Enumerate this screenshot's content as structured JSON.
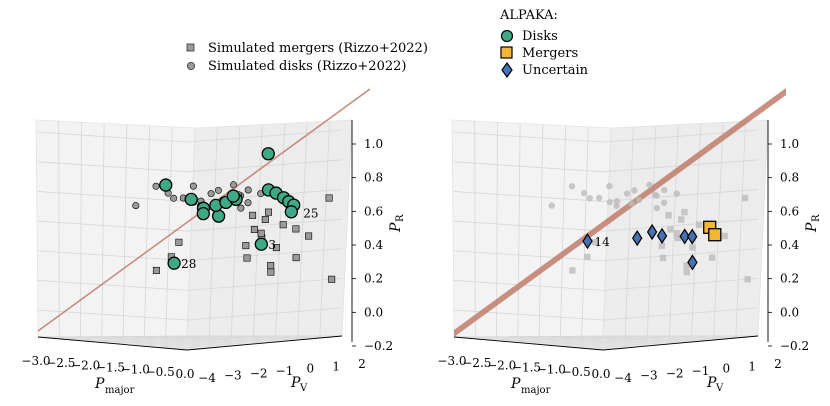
{
  "legend_sim": {
    "mergers_label": "Simulated mergers (Rizzo+2022)",
    "disks_label": "Simulated disks (Rizzo+2022)"
  },
  "legend_alpaka": {
    "title": "ALPAKA:",
    "disks_label": "Disks",
    "mergers_label": "Mergers",
    "uncertain_label": "Uncertain"
  },
  "colors": {
    "disk": "#3fa886",
    "merger": "#f3b634",
    "uncertain": "#4472b4",
    "sim": "#9a9a9a",
    "plane": "#c07b6a"
  },
  "axes": {
    "x_label_main": "P",
    "x_label_sub": "major",
    "y_label_main": "P",
    "y_label_sub": "V",
    "z_label_main": "P",
    "z_label_sub": "R",
    "x_ticks": [
      "−3.0",
      "−2.5",
      "−2.0",
      "−1.5",
      "−1.0",
      "−0.5",
      "0.0"
    ],
    "y_ticks": [
      "−4",
      "−3",
      "−2",
      "−1",
      "0",
      "1",
      "2"
    ],
    "z_ticks": [
      "−0.2",
      "0.0",
      "0.2",
      "0.4",
      "0.6",
      "0.8",
      "1.0"
    ]
  },
  "chart_data": [
    {
      "type": "scatter",
      "panel": "left",
      "xlim": [
        -3.0,
        0.0
      ],
      "ylim": [
        -4,
        2
      ],
      "zlim": [
        -0.2,
        1.0
      ],
      "series": [
        {
          "name": "Simulated mergers (Rizzo+2022)",
          "marker": "square",
          "facecolor": "#9a9a9a",
          "edgecolor": "#000000",
          "points": [
            [
              -0.5,
              -0.5,
              0.45
            ],
            [
              -0.4,
              -0.2,
              0.42
            ],
            [
              -0.3,
              0.3,
              0.38
            ],
            [
              -0.2,
              0.6,
              0.35
            ],
            [
              -0.1,
              0.9,
              0.3
            ],
            [
              0.0,
              1.5,
              0.55
            ],
            [
              -0.3,
              0.8,
              0.15
            ],
            [
              -0.5,
              0.2,
              0.1
            ],
            [
              -0.6,
              0.4,
              0.05
            ],
            [
              -0.8,
              1.0,
              0.2
            ],
            [
              0.0,
              1.6,
              0.0
            ],
            [
              -1.2,
              1.2,
              0.25
            ],
            [
              -1.4,
              1.3,
              0.3
            ],
            [
              -1.6,
              1.4,
              0.1
            ],
            [
              -2.4,
              0.3,
              0.2
            ],
            [
              -2.5,
              0.2,
              0.1
            ],
            [
              -2.8,
              0.2,
              0.0
            ],
            [
              -1.0,
              0.2,
              0.22
            ],
            [
              -0.7,
              0.5,
              0.45
            ],
            [
              -0.9,
              0.6,
              0.3
            ]
          ]
        },
        {
          "name": "Simulated disks (Rizzo+2022)",
          "marker": "circle",
          "facecolor": "#9a9a9a",
          "edgecolor": "#000000",
          "points": [
            [
              -2.2,
              -0.5,
              0.55
            ],
            [
              -2.0,
              -0.3,
              0.52
            ],
            [
              -1.9,
              -0.1,
              0.6
            ],
            [
              -1.8,
              0.0,
              0.5
            ],
            [
              -1.7,
              0.2,
              0.55
            ],
            [
              -1.6,
              -0.4,
              0.48
            ],
            [
              -1.5,
              0.1,
              0.58
            ],
            [
              -1.4,
              -0.2,
              0.5
            ],
            [
              -1.3,
              0.3,
              0.62
            ],
            [
              -1.2,
              -0.3,
              0.53
            ],
            [
              -1.1,
              0.2,
              0.47
            ],
            [
              -1.0,
              0.0,
              0.56
            ],
            [
              -0.9,
              0.1,
              0.6
            ],
            [
              -0.8,
              -0.1,
              0.52
            ],
            [
              -0.7,
              0.2,
              0.58
            ],
            [
              -2.8,
              -0.6,
              0.45
            ],
            [
              -2.6,
              -0.2,
              0.58
            ],
            [
              -2.4,
              0.1,
              0.5
            ],
            [
              -2.1,
              0.3,
              0.48
            ],
            [
              -1.3,
              0.5,
              0.55
            ]
          ]
        },
        {
          "name": "Disks",
          "marker": "circle",
          "facecolor": "#3fa886",
          "edgecolor": "#000000",
          "points": [
            [
              -0.6,
              0.3,
              0.85
            ],
            [
              -2.3,
              -0.4,
              0.6
            ],
            [
              -2.1,
              0.2,
              0.5
            ],
            [
              -1.8,
              0.1,
              0.45
            ],
            [
              -1.7,
              -0.1,
              0.42
            ],
            [
              -1.6,
              0.3,
              0.4
            ],
            [
              -1.5,
              0.0,
              0.48
            ],
            [
              -1.4,
              0.2,
              0.5
            ],
            [
              -1.3,
              0.4,
              0.52
            ],
            [
              -1.2,
              0.1,
              0.55
            ],
            [
              -0.7,
              0.5,
              0.6
            ],
            [
              -0.6,
              0.6,
              0.58
            ],
            [
              -0.5,
              0.7,
              0.55
            ],
            [
              -0.5,
              0.9,
              0.52
            ],
            [
              -0.4,
              0.9,
              0.5
            ],
            [
              -0.5,
              1.0,
              0.45
            ],
            [
              -1.0,
              0.8,
              0.22
            ],
            [
              -2.6,
              0.5,
              0.05
            ]
          ]
        }
      ],
      "annotations": [
        {
          "text": "25",
          "x": -0.4,
          "y": 1.0,
          "z": 0.45
        },
        {
          "text": "3",
          "x": -1.0,
          "y": 0.8,
          "z": 0.22
        },
        {
          "text": "28",
          "x": -2.6,
          "y": 0.5,
          "z": 0.05
        }
      ]
    },
    {
      "type": "scatter",
      "panel": "right",
      "xlim": [
        -3.0,
        0.0
      ],
      "ylim": [
        -4,
        2
      ],
      "zlim": [
        -0.2,
        1.0
      ],
      "series": [
        {
          "name": "Simulated mergers (Rizzo+2022)",
          "marker": "square",
          "facecolor": "#bbbbbb",
          "points": [
            [
              -0.5,
              -0.5,
              0.45
            ],
            [
              -0.4,
              -0.2,
              0.42
            ],
            [
              -0.3,
              0.3,
              0.38
            ],
            [
              -0.2,
              0.6,
              0.35
            ],
            [
              -0.1,
              0.9,
              0.3
            ],
            [
              0.0,
              1.5,
              0.55
            ],
            [
              -0.3,
              0.8,
              0.15
            ],
            [
              -0.5,
              0.2,
              0.1
            ],
            [
              -0.6,
              0.4,
              0.05
            ],
            [
              -0.8,
              1.0,
              0.2
            ],
            [
              0.0,
              1.6,
              0.0
            ],
            [
              -1.2,
              1.2,
              0.25
            ],
            [
              -1.4,
              1.3,
              0.3
            ],
            [
              -1.6,
              1.4,
              0.1
            ],
            [
              -2.4,
              0.3,
              0.2
            ],
            [
              -2.5,
              0.2,
              0.1
            ],
            [
              -2.8,
              0.2,
              0.0
            ],
            [
              -1.0,
              0.2,
              0.22
            ],
            [
              -0.7,
              0.5,
              0.45
            ],
            [
              -0.9,
              0.6,
              0.3
            ]
          ]
        },
        {
          "name": "Simulated disks (Rizzo+2022)",
          "marker": "circle",
          "facecolor": "#bbbbbb",
          "points": [
            [
              -2.2,
              -0.5,
              0.55
            ],
            [
              -2.0,
              -0.3,
              0.52
            ],
            [
              -1.9,
              -0.1,
              0.6
            ],
            [
              -1.8,
              0.0,
              0.5
            ],
            [
              -1.7,
              0.2,
              0.55
            ],
            [
              -1.6,
              -0.4,
              0.48
            ],
            [
              -1.5,
              0.1,
              0.58
            ],
            [
              -1.4,
              -0.2,
              0.5
            ],
            [
              -1.3,
              0.3,
              0.62
            ],
            [
              -1.2,
              -0.3,
              0.53
            ],
            [
              -1.1,
              0.2,
              0.47
            ],
            [
              -1.0,
              0.0,
              0.56
            ],
            [
              -0.9,
              0.1,
              0.6
            ],
            [
              -0.8,
              -0.1,
              0.52
            ],
            [
              -0.7,
              0.2,
              0.58
            ],
            [
              -2.8,
              -0.6,
              0.45
            ],
            [
              -2.6,
              -0.2,
              0.58
            ],
            [
              -2.4,
              0.1,
              0.5
            ],
            [
              -2.1,
              0.3,
              0.48
            ],
            [
              -1.3,
              0.5,
              0.55
            ]
          ]
        },
        {
          "name": "Mergers",
          "marker": "square",
          "facecolor": "#f3b634",
          "edgecolor": "#000000",
          "points": [
            [
              -0.4,
              0.9,
              0.35
            ],
            [
              -0.35,
              1.0,
              0.3
            ]
          ]
        },
        {
          "name": "Uncertain",
          "marker": "diamond",
          "facecolor": "#4472b4",
          "edgecolor": "#000000",
          "points": [
            [
              -2.6,
              0.4,
              0.2
            ],
            [
              -1.6,
              0.4,
              0.25
            ],
            [
              -1.3,
              0.4,
              0.3
            ],
            [
              -1.1,
              0.4,
              0.28
            ],
            [
              -0.8,
              0.7,
              0.28
            ],
            [
              -0.7,
              0.8,
              0.28
            ],
            [
              -0.8,
              1.0,
              0.1
            ]
          ]
        }
      ],
      "annotations": [
        {
          "text": "14",
          "x": -2.6,
          "y": 0.4,
          "z": 0.2
        }
      ]
    }
  ]
}
